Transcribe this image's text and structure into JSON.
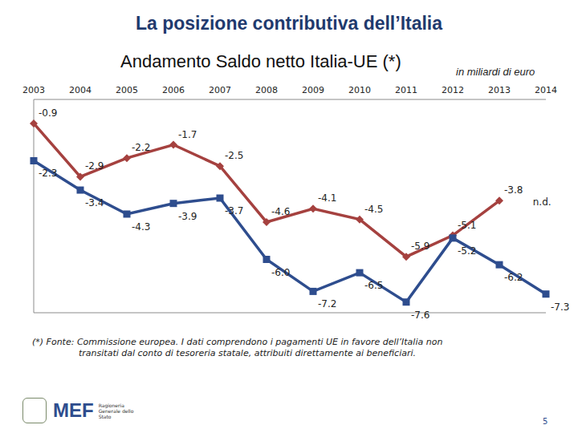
{
  "chart_data": {
    "type": "line",
    "title": "La posizione contributiva dell’Italia",
    "subtitle": "Andamento Saldo netto Italia-UE (*)",
    "unit": "in miliardi di euro",
    "footnote": "(*) Fonte: Commissione europea. I dati comprendono i pagamenti UE in favore dell’Italia non transitati dal conto di tesoreria statale, attribuiti direttamente ai beneficiari.",
    "categories": [
      "2003",
      "2004",
      "2005",
      "2006",
      "2007",
      "2008",
      "2009",
      "2010",
      "2011",
      "2012",
      "2013",
      "2014"
    ],
    "series": [
      {
        "color": "#a5413f",
        "marker": "diamond",
        "values": [
          -0.9,
          -2.9,
          -2.2,
          -1.7,
          -2.5,
          -4.6,
          -4.1,
          -4.5,
          -5.9,
          -5.1,
          -3.8,
          null
        ],
        "value_labels": [
          "-0.9",
          "-2.9",
          "-2.2",
          "-1.7",
          "-2.5",
          "-4.6",
          "-4.1",
          "-4.5",
          "-5.9",
          "-5.1",
          "-3.8",
          "n.d."
        ]
      },
      {
        "color": "#2e4d8e",
        "marker": "square",
        "values": [
          -2.3,
          -3.4,
          -4.3,
          -3.9,
          -3.7,
          -6.0,
          -7.2,
          -6.5,
          -7.6,
          -5.2,
          -6.2,
          -7.3
        ],
        "value_labels": [
          "-2.3",
          "-3.4",
          "-4.3",
          "-3.9",
          "-3.7",
          "-6.0",
          "-7.2",
          "-6.5",
          "-7.6",
          "-5.2",
          "-6.2",
          "-7.3"
        ]
      }
    ],
    "ylim": [
      -8,
      0
    ],
    "yticks": [
      -8,
      -7,
      -6,
      -5,
      -4,
      -3,
      -2,
      -1,
      0
    ],
    "grid": true,
    "tick_labels": "x",
    "data_labels": true
  },
  "page": {
    "logo": "MEF",
    "logo_caption": "Ragioneria Generale dello Stato",
    "page_number": "5"
  }
}
